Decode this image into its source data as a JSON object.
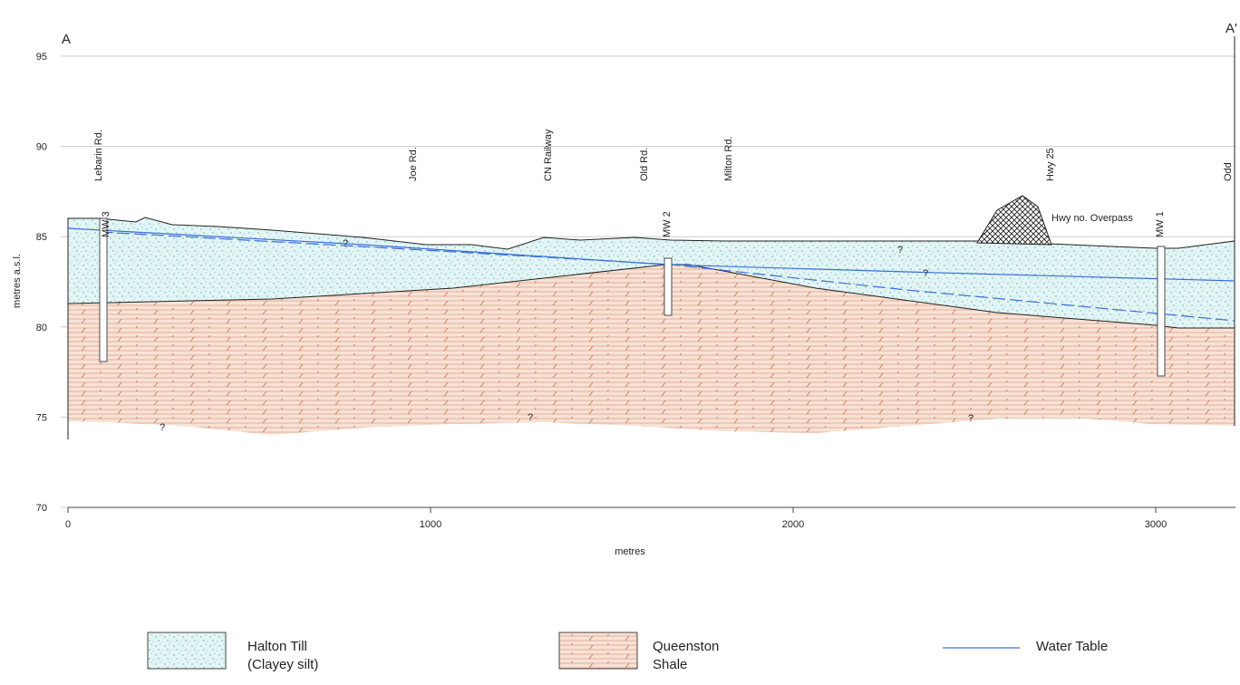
{
  "header": {
    "section_start": "A",
    "section_end": "A'"
  },
  "axes": {
    "y_label": "metres a.s.l.",
    "x_label": "metres",
    "xlim": [
      0,
      3220
    ],
    "ylim": [
      70,
      95
    ],
    "yticks": [
      70,
      75,
      80,
      85,
      90,
      95
    ],
    "xticks": [
      0,
      1000,
      2000,
      3000
    ]
  },
  "landmarks": [
    "Lebarin Rd.",
    "Joe Rd.",
    "CN Railway",
    "Old Rd.",
    "Milton Rd.",
    "Hwy 25",
    "Odd"
  ],
  "wells": [
    "MW 3",
    "MW 2",
    "MW 1"
  ],
  "annotations": {
    "overpass": "Hwy no. Overpass",
    "unknown": "?"
  },
  "legend": [
    {
      "lines": [
        "Halton Till",
        "(Clayey silt)"
      ]
    },
    {
      "lines": [
        "Queenston",
        "Shale"
      ]
    },
    {
      "lines": [
        "Water Table"
      ]
    }
  ]
}
